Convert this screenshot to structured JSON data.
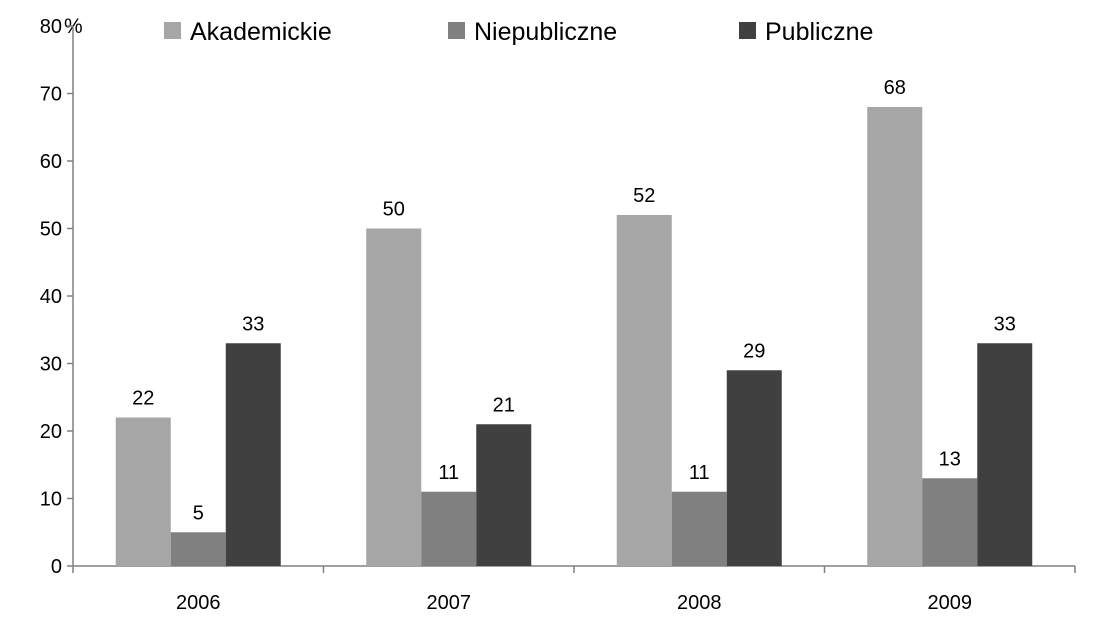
{
  "chart_data": {
    "type": "bar",
    "categories": [
      "2006",
      "2007",
      "2008",
      "2009"
    ],
    "series": [
      {
        "name": "Akademickie",
        "values": [
          22,
          50,
          52,
          68
        ],
        "color": "#a6a6a6"
      },
      {
        "name": "Niepubliczne",
        "values": [
          5,
          11,
          11,
          13
        ],
        "color": "#808080"
      },
      {
        "name": "Publiczne",
        "values": [
          33,
          21,
          29,
          33
        ],
        "color": "#404040"
      }
    ],
    "ylim": [
      0,
      80
    ],
    "yticks": [
      0,
      10,
      20,
      30,
      40,
      50,
      60,
      70,
      80
    ],
    "y_unit": "%",
    "grid": false,
    "legend_position": "top"
  }
}
